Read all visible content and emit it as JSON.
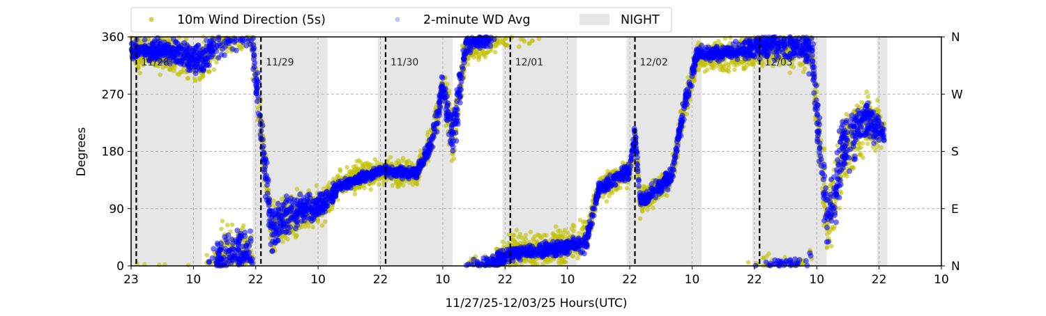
{
  "chart_data": {
    "type": "scatter",
    "xlabel": "11/27/25-12/03/25  Hours(UTC)",
    "ylabel": "Degrees",
    "xlim_hours": [
      0,
      156
    ],
    "ylim": [
      0,
      360
    ],
    "x_ticks": [
      {
        "hour": 0,
        "label": "23"
      },
      {
        "hour": 12,
        "label": "10"
      },
      {
        "hour": 24,
        "label": "22"
      },
      {
        "hour": 36,
        "label": "10"
      },
      {
        "hour": 48,
        "label": "22"
      },
      {
        "hour": 60,
        "label": "10"
      },
      {
        "hour": 72,
        "label": "22"
      },
      {
        "hour": 84,
        "label": "10"
      },
      {
        "hour": 96,
        "label": "22"
      },
      {
        "hour": 108,
        "label": "10"
      },
      {
        "hour": 120,
        "label": "22"
      },
      {
        "hour": 132,
        "label": "10"
      },
      {
        "hour": 144,
        "label": "22"
      },
      {
        "hour": 156,
        "label": "10"
      }
    ],
    "y_ticks": [
      0,
      90,
      180,
      270,
      360
    ],
    "y_ticks_right": [
      {
        "value": 0,
        "label": "N"
      },
      {
        "value": 90,
        "label": "E"
      },
      {
        "value": 180,
        "label": "S"
      },
      {
        "value": 270,
        "label": "W"
      },
      {
        "value": 360,
        "label": "N"
      }
    ],
    "grid": true,
    "legend": {
      "placement": "top",
      "entries": [
        {
          "label": "10m Wind Direction (5s)",
          "color": "#bfbf00"
        },
        {
          "label": "2-minute WD Avg",
          "color": "#0000ff"
        },
        {
          "label": "NIGHT",
          "color": "#e6e6e6"
        }
      ]
    },
    "day_markers": [
      {
        "hour": 1,
        "label": "11/28"
      },
      {
        "hour": 25,
        "label": "11/29"
      },
      {
        "hour": 49,
        "label": "11/30"
      },
      {
        "hour": 73,
        "label": "12/01"
      },
      {
        "hour": 97,
        "label": "12/02"
      },
      {
        "hour": 121,
        "label": "12/03"
      }
    ],
    "night_periods_hours": [
      [
        0,
        13.6
      ],
      [
        23.4,
        37.8
      ],
      [
        47.5,
        61.9
      ],
      [
        71.5,
        85.8
      ],
      [
        95.4,
        109.8
      ],
      [
        119.6,
        133.9
      ],
      [
        143.6,
        145.6
      ]
    ],
    "series": [
      {
        "name": "10m Wind Direction (5s)",
        "color": "#bfbf00",
        "trend_hour_deg_spread": [
          [
            0,
            335,
            35
          ],
          [
            10,
            330,
            40
          ],
          [
            13.6,
            320,
            45
          ],
          [
            17,
            370,
            70
          ],
          [
            23,
            380,
            60
          ],
          [
            27,
            60,
            60
          ],
          [
            31,
            80,
            45
          ],
          [
            37,
            95,
            40
          ],
          [
            40,
            130,
            30
          ],
          [
            48,
            150,
            30
          ],
          [
            55,
            145,
            30
          ],
          [
            58,
            200,
            35
          ],
          [
            60,
            280,
            40
          ],
          [
            62,
            200,
            80
          ],
          [
            64.5,
            345,
            40
          ],
          [
            69,
            355,
            35
          ],
          [
            73,
            380,
            45
          ],
          [
            80,
            385,
            40
          ],
          [
            87.5,
            400,
            40
          ],
          [
            90,
            480,
            30
          ],
          [
            96,
            510,
            30
          ],
          [
            97,
            560,
            30
          ],
          [
            98,
            460,
            30
          ],
          [
            104,
            500,
            30
          ],
          [
            106,
            590,
            35
          ],
          [
            109,
            690,
            30
          ],
          [
            115,
            690,
            35
          ],
          [
            121,
            700,
            40
          ],
          [
            127,
            705,
            45
          ],
          [
            131,
            700,
            60
          ],
          [
            134,
            420,
            90
          ],
          [
            137,
            540,
            90
          ],
          [
            141.5,
            590,
            60
          ],
          [
            145,
            570,
            40
          ]
        ]
      },
      {
        "name": "2-minute WD Avg",
        "color": "#0000ff",
        "trend_hour_deg_spread": [
          [
            0,
            340,
            20
          ],
          [
            10,
            335,
            25
          ],
          [
            13.6,
            320,
            30
          ],
          [
            17,
            370,
            60
          ],
          [
            23,
            380,
            50
          ],
          [
            27,
            60,
            50
          ],
          [
            31,
            85,
            35
          ],
          [
            37,
            95,
            30
          ],
          [
            40,
            125,
            15
          ],
          [
            48,
            150,
            10
          ],
          [
            55,
            145,
            12
          ],
          [
            58,
            200,
            25
          ],
          [
            60,
            280,
            30
          ],
          [
            62,
            200,
            70
          ],
          [
            64.5,
            350,
            20
          ],
          [
            69,
            360,
            20
          ],
          [
            73,
            378,
            15
          ],
          [
            80,
            385,
            15
          ],
          [
            87.5,
            395,
            20
          ],
          [
            90,
            480,
            15
          ],
          [
            96,
            510,
            15
          ],
          [
            97,
            570,
            20
          ],
          [
            98,
            460,
            15
          ],
          [
            104,
            500,
            20
          ],
          [
            106,
            590,
            25
          ],
          [
            109,
            695,
            15
          ],
          [
            115,
            695,
            15
          ],
          [
            121,
            705,
            25
          ],
          [
            127,
            710,
            35
          ],
          [
            131,
            700,
            50
          ],
          [
            134,
            420,
            80
          ],
          [
            137,
            540,
            80
          ],
          [
            141.5,
            590,
            40
          ],
          [
            145,
            570,
            20
          ]
        ]
      }
    ]
  }
}
